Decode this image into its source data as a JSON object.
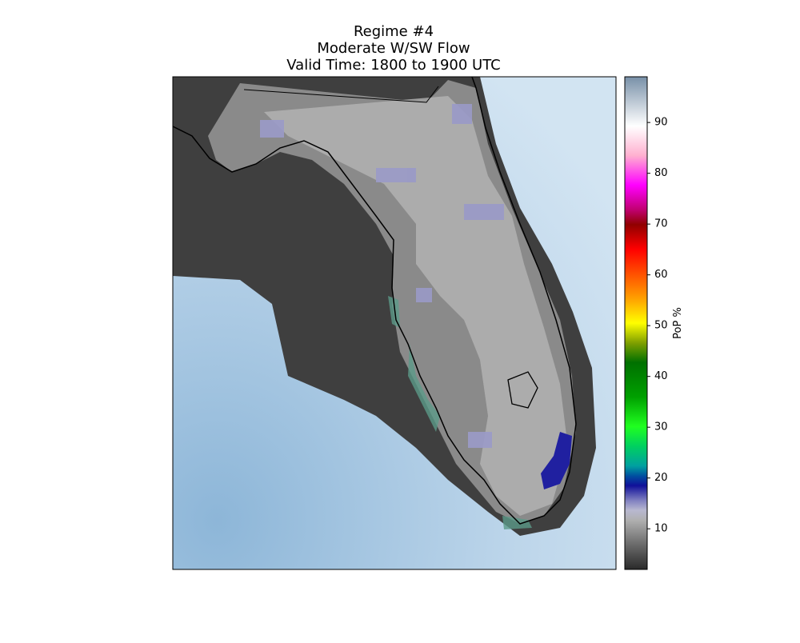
{
  "title": [
    "Regime #4",
    "Moderate W/SW Flow",
    "Valid Time: 1800 to 1900 UTC"
  ],
  "colorbar": {
    "label": "PoP %",
    "lim": [
      2,
      99
    ],
    "ticks": [
      10,
      20,
      30,
      40,
      50,
      60,
      70,
      80,
      90
    ]
  }
}
